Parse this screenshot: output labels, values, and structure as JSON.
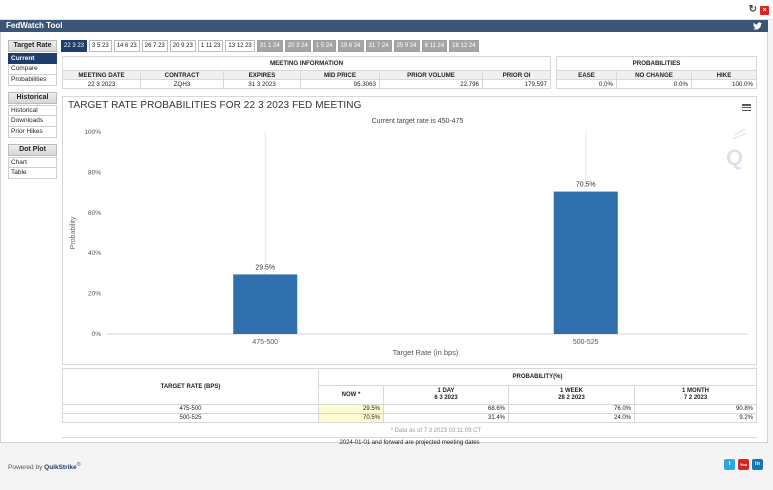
{
  "app": {
    "title": "FedWatch Tool",
    "powered_by_label": "Powered by",
    "powered_by_brand": "QuikStrike",
    "powered_by_mark": "®"
  },
  "sidebar": {
    "groups": [
      {
        "head": "Target Rate",
        "items": [
          "Current",
          "Compare",
          "Probabilities"
        ],
        "active": 0
      },
      {
        "head": "Historical",
        "items": [
          "Historical",
          "Downloads",
          "Prior Hikes"
        ]
      },
      {
        "head": "Dot Plot",
        "items": [
          "Chart",
          "Table"
        ]
      }
    ]
  },
  "date_tabs": [
    {
      "label": "22 3 23",
      "state": "active"
    },
    {
      "label": "3 5 23",
      "state": "normal"
    },
    {
      "label": "14 6 23",
      "state": "normal"
    },
    {
      "label": "26 7 23",
      "state": "normal"
    },
    {
      "label": "20 9 23",
      "state": "normal"
    },
    {
      "label": "1 11 23",
      "state": "normal"
    },
    {
      "label": "13 12 23",
      "state": "normal"
    },
    {
      "label": "31 1 24",
      "state": "gray"
    },
    {
      "label": "20 3 24",
      "state": "gray"
    },
    {
      "label": "1 5 24",
      "state": "gray"
    },
    {
      "label": "19 6 24",
      "state": "gray"
    },
    {
      "label": "31 7 24",
      "state": "gray"
    },
    {
      "label": "25 9 24",
      "state": "gray"
    },
    {
      "label": "6 11 24",
      "state": "gray"
    },
    {
      "label": "18 12 24",
      "state": "gray"
    }
  ],
  "meeting_info": {
    "caption": "MEETING INFORMATION",
    "headers": [
      "MEETING DATE",
      "CONTRACT",
      "EXPIRES",
      "MID PRICE",
      "PRIOR VOLUME",
      "PRIOR OI"
    ],
    "row": [
      "22 3 2023",
      "ZQH3",
      "31 3 2023",
      "95.3063",
      "22,796",
      "179,597"
    ]
  },
  "probabilities": {
    "caption": "PROBABILITIES",
    "headers": [
      "EASE",
      "NO CHANGE",
      "HIKE"
    ],
    "row": [
      "0.0%",
      "0.0%",
      "100.0%"
    ]
  },
  "chart_data": {
    "type": "bar",
    "title": "TARGET RATE PROBABILITIES FOR 22 3 2023 FED MEETING",
    "subtitle": "Current target rate is 450-475",
    "xlabel": "Target Rate (in bps)",
    "ylabel": "Probability",
    "categories": [
      "475-500",
      "500-525"
    ],
    "values": [
      29.5,
      70.5
    ],
    "data_labels": [
      "29.5%",
      "70.5%"
    ],
    "ylim": [
      0,
      100
    ],
    "yticks": [
      0,
      20,
      40,
      60,
      80,
      100
    ],
    "ytick_labels": [
      "0%",
      "20%",
      "40%",
      "60%",
      "80%",
      "100%"
    ],
    "grid": false,
    "bar_color": "#2f6fad"
  },
  "bottom_table": {
    "rate_header": "TARGET RATE (BPS)",
    "prob_header": "PROBABILITY(%)",
    "columns": [
      {
        "label": "NOW *",
        "date": ""
      },
      {
        "label": "1 DAY",
        "date": "6 3 2023"
      },
      {
        "label": "1 WEEK",
        "date": "28 2 2023"
      },
      {
        "label": "1 MONTH",
        "date": "7 2 2023"
      }
    ],
    "rows": [
      {
        "rate": "475-500",
        "values": [
          "29.5%",
          "68.6%",
          "76.0%",
          "90.8%"
        ]
      },
      {
        "rate": "500-525",
        "values": [
          "70.5%",
          "31.4%",
          "24.0%",
          "9.2%"
        ]
      }
    ],
    "note": "* Data as of 7 3 2023 03:11:09 CT",
    "footer": "2024-01-01 and forward are projected meeting dates"
  },
  "colors": {
    "titlebar": "#3a5575",
    "active": "#1f3d6a",
    "bar": "#2f6fad",
    "now_highlight": "#fdfbd2"
  },
  "icons": [
    "refresh-icon",
    "close-icon",
    "twitter-icon",
    "menu-icon",
    "quikstrike-logo-icon",
    "twitter-social-icon",
    "youtube-icon",
    "linkedin-icon"
  ]
}
